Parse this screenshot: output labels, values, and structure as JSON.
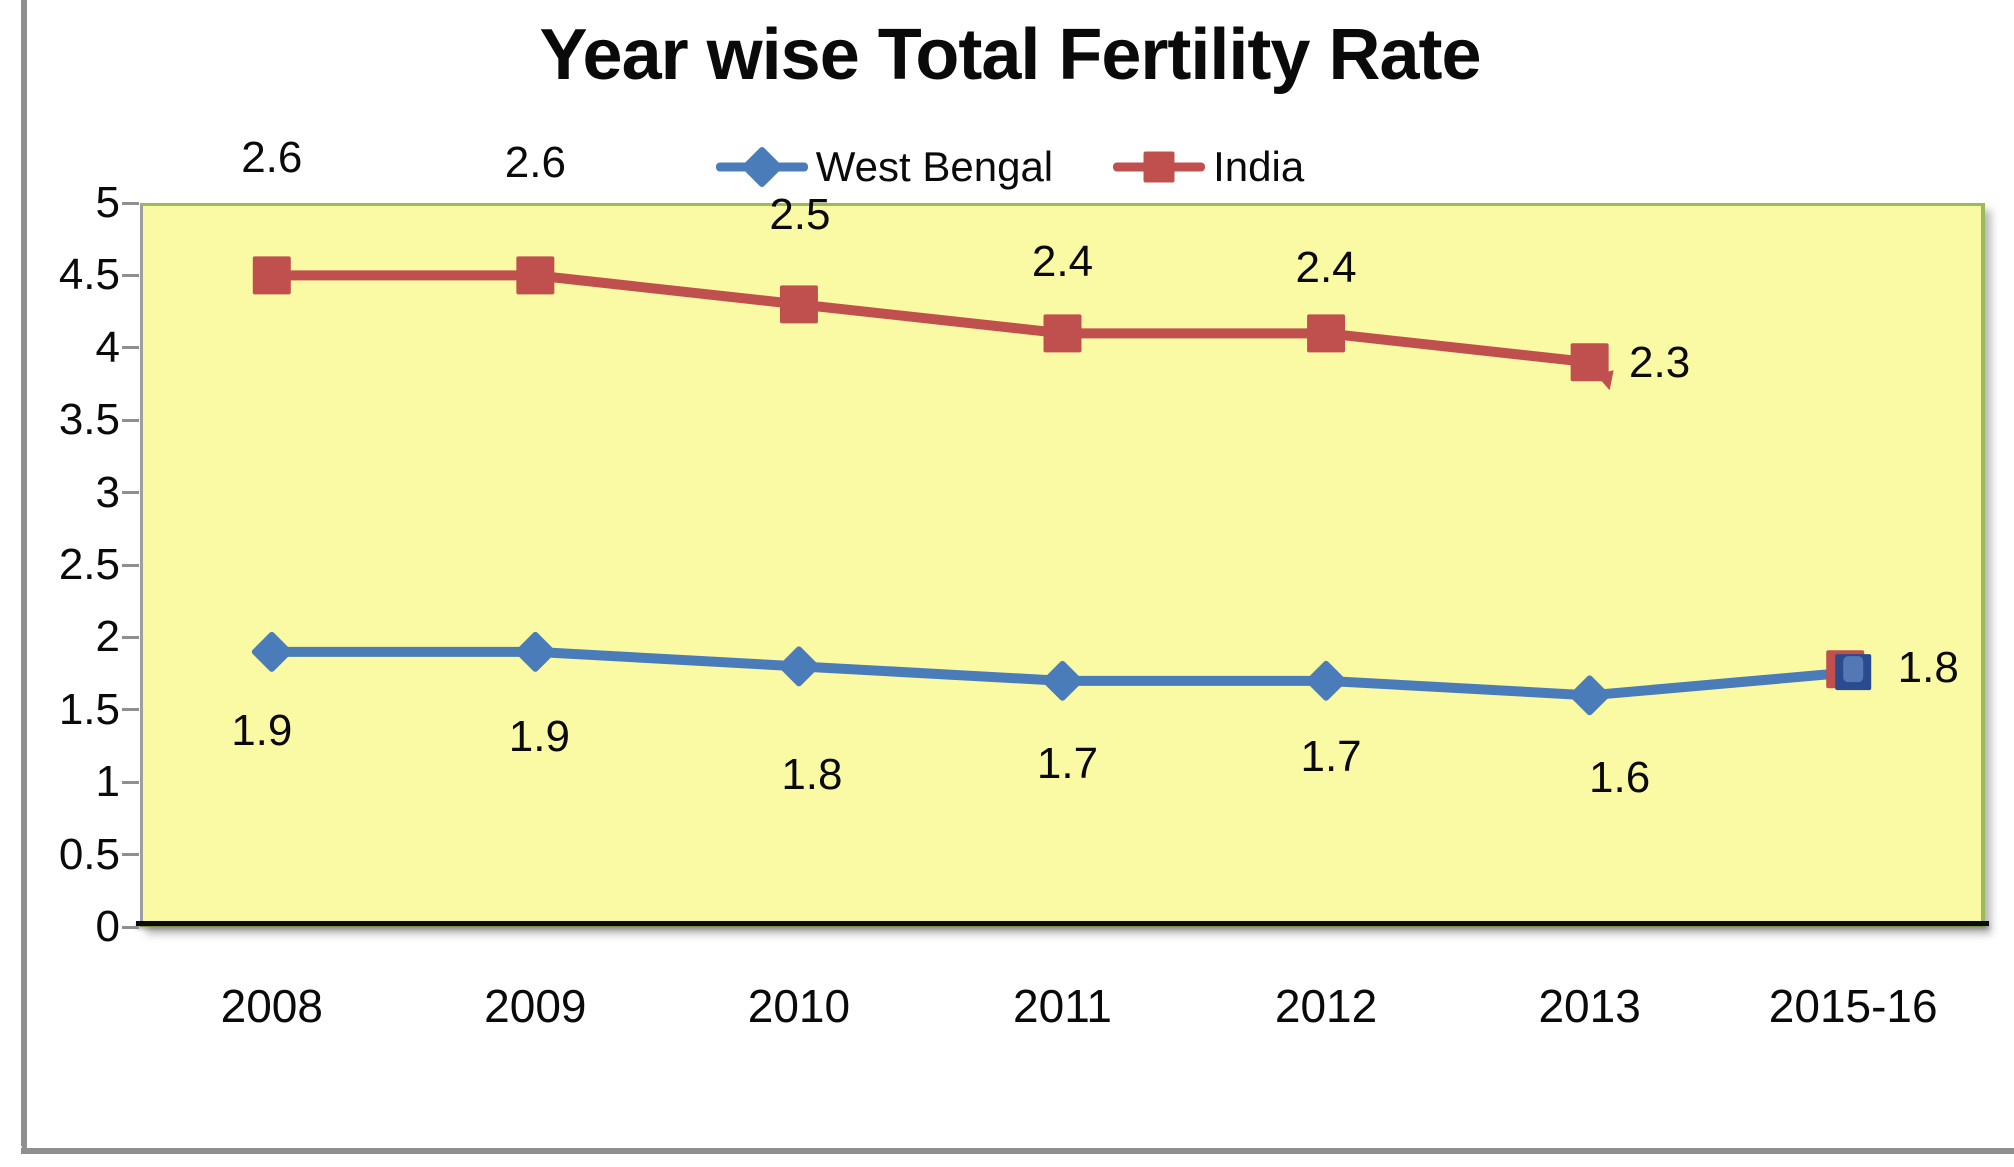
{
  "title": "Year wise Total Fertility Rate",
  "legend": {
    "items": [
      {
        "label": "West Bengal",
        "color": "#4a7cba",
        "marker": "diamond"
      },
      {
        "label": "India",
        "color": "#c0504d",
        "marker": "square"
      }
    ]
  },
  "chart_data": {
    "type": "line",
    "title": "Year wise Total Fertility Rate",
    "categories": [
      "2008",
      "2009",
      "2010",
      "2011",
      "2012",
      "2013",
      "2015-16"
    ],
    "y_axis": {
      "min": 0,
      "max": 5,
      "step": 0.5,
      "tick_labels": [
        "0",
        "0.5",
        "1",
        "1.5",
        "2",
        "2.5",
        "3",
        "3.5",
        "4",
        "4.5",
        "5"
      ]
    },
    "grid": false,
    "legend_position": "top-center",
    "plot_bg": "#fafaa5",
    "plot_border_color": "#9bbb59",
    "series": [
      {
        "name": "India",
        "color": "#c0504d",
        "marker": "square",
        "values": [
          2.6,
          2.6,
          2.5,
          2.4,
          2.4,
          2.3,
          null
        ],
        "data_labels": [
          "2.6",
          "2.6",
          "2.5",
          "2.4",
          "2.4",
          "2.3",
          ""
        ],
        "plotted_values": [
          4.5,
          4.5,
          4.3,
          4.1,
          4.1,
          3.9,
          1.78
        ],
        "line_end_index": 5,
        "label_offsets": [
          [
            0,
            -117
          ],
          [
            0,
            -112
          ],
          [
            1,
            -89
          ],
          [
            0,
            -71
          ],
          [
            0,
            -65
          ],
          [
            70,
            1
          ],
          [
            0,
            0
          ]
        ]
      },
      {
        "name": "West Bengal",
        "color": "#4a7cba",
        "marker": "diamond",
        "values": [
          1.9,
          1.9,
          1.8,
          1.7,
          1.7,
          1.6,
          1.8
        ],
        "data_labels": [
          "1.9",
          "1.9",
          "1.8",
          "1.7",
          "1.7",
          "1.6",
          "1.8"
        ],
        "plotted_values": [
          1.9,
          1.9,
          1.8,
          1.7,
          1.7,
          1.6,
          1.76
        ],
        "line_end_index": 6,
        "label_offsets": [
          [
            -10,
            79
          ],
          [
            4,
            85
          ],
          [
            13,
            109
          ],
          [
            5,
            83
          ],
          [
            5,
            76
          ],
          [
            30,
            83
          ],
          [
            75,
            -4
          ]
        ],
        "last_marker_style": {
          "outer": "#2a4b8d",
          "inner": "#5478b6"
        }
      }
    ]
  }
}
